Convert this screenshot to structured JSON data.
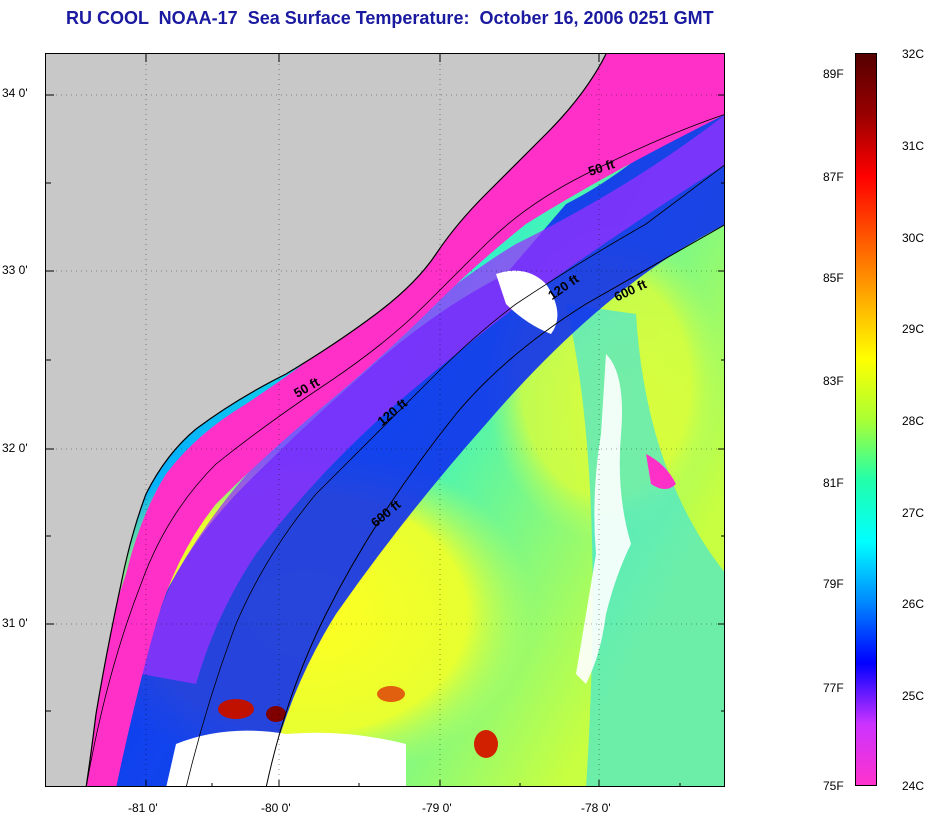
{
  "title": "RU COOL  NOAA-17  Sea Surface Temperature:  October 16, 2006 0251 GMT",
  "lat_labels": [
    {
      "text": "34 0'",
      "lat": 34.0
    },
    {
      "text": "33 0'",
      "lat": 33.0
    },
    {
      "text": "32 0'",
      "lat": 32.0
    },
    {
      "text": "31 0'",
      "lat": 31.0
    }
  ],
  "lon_labels": [
    {
      "text": "-81 0'",
      "lon": -81.0
    },
    {
      "text": "-80 0'",
      "lon": -80.0
    },
    {
      "text": "-79 0'",
      "lon": -79.0
    },
    {
      "text": "-78 0'",
      "lon": -78.0
    }
  ],
  "contour_labels": [
    {
      "text": "50 ft",
      "name": "contour-label-50ft-north"
    },
    {
      "text": "120 ft",
      "name": "contour-label-120ft-north"
    },
    {
      "text": "600 ft",
      "name": "contour-label-600ft-north"
    },
    {
      "text": "50 ft",
      "name": "contour-label-50ft-south"
    },
    {
      "text": "120 ft",
      "name": "contour-label-120ft-south"
    },
    {
      "text": "600 ft",
      "name": "contour-label-600ft-south"
    }
  ],
  "colorbar": {
    "fahrenheit": [
      "89F",
      "87F",
      "85F",
      "83F",
      "81F",
      "79F",
      "77F",
      "75F"
    ],
    "celsius": [
      "32C",
      "31C",
      "30C",
      "29C",
      "28C",
      "27C",
      "26C",
      "25C",
      "24C"
    ],
    "colors": [
      "#ff33cc",
      "#cc33ff",
      "#0000ff",
      "#0088ff",
      "#00ffff",
      "#22ffaa",
      "#aaff33",
      "#ffff00",
      "#ffaa00",
      "#ff5500",
      "#ff0000",
      "#990000",
      "#550000"
    ]
  },
  "colors": {
    "land": "#c8c8c8",
    "cloud": "#ffffff",
    "title": "#1a1aa0"
  }
}
